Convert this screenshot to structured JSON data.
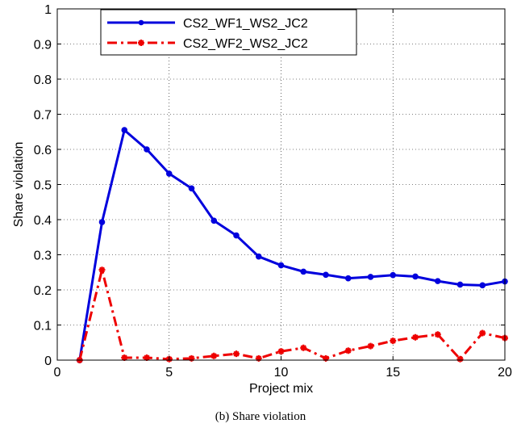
{
  "chart_data": {
    "type": "line",
    "title": "",
    "xlabel": "Project mix",
    "ylabel": "Share violation",
    "xlim": [
      0,
      20
    ],
    "ylim": [
      0,
      1
    ],
    "xticks": [
      "0",
      "5",
      "10",
      "15",
      "20"
    ],
    "yticks": [
      "0",
      "0.1",
      "0.2",
      "0.3",
      "0.4",
      "0.5",
      "0.6",
      "0.7",
      "0.8",
      "0.9",
      "1"
    ],
    "grid": true,
    "legend_position": "top-left",
    "x": [
      1,
      2,
      3,
      4,
      5,
      6,
      7,
      8,
      9,
      10,
      11,
      12,
      13,
      14,
      15,
      16,
      17,
      18,
      19,
      20
    ],
    "series": [
      {
        "name": "CS2_WF1_WS2_JC2",
        "color": "#0000dd",
        "style": "solid",
        "values": [
          0.0,
          0.393,
          0.655,
          0.6,
          0.531,
          0.489,
          0.397,
          0.355,
          0.295,
          0.27,
          0.252,
          0.243,
          0.233,
          0.237,
          0.242,
          0.238,
          0.225,
          0.215,
          0.213,
          0.224
        ]
      },
      {
        "name": "CS2_WF2_WS2_JC2",
        "color": "#ee0000",
        "style": "dash-dot",
        "values": [
          0.0,
          0.257,
          0.007,
          0.007,
          0.003,
          0.005,
          0.012,
          0.018,
          0.005,
          0.025,
          0.035,
          0.005,
          0.027,
          0.04,
          0.055,
          0.065,
          0.073,
          0.003,
          0.077,
          0.063
        ]
      }
    ]
  },
  "caption": "(b)  Share violation"
}
